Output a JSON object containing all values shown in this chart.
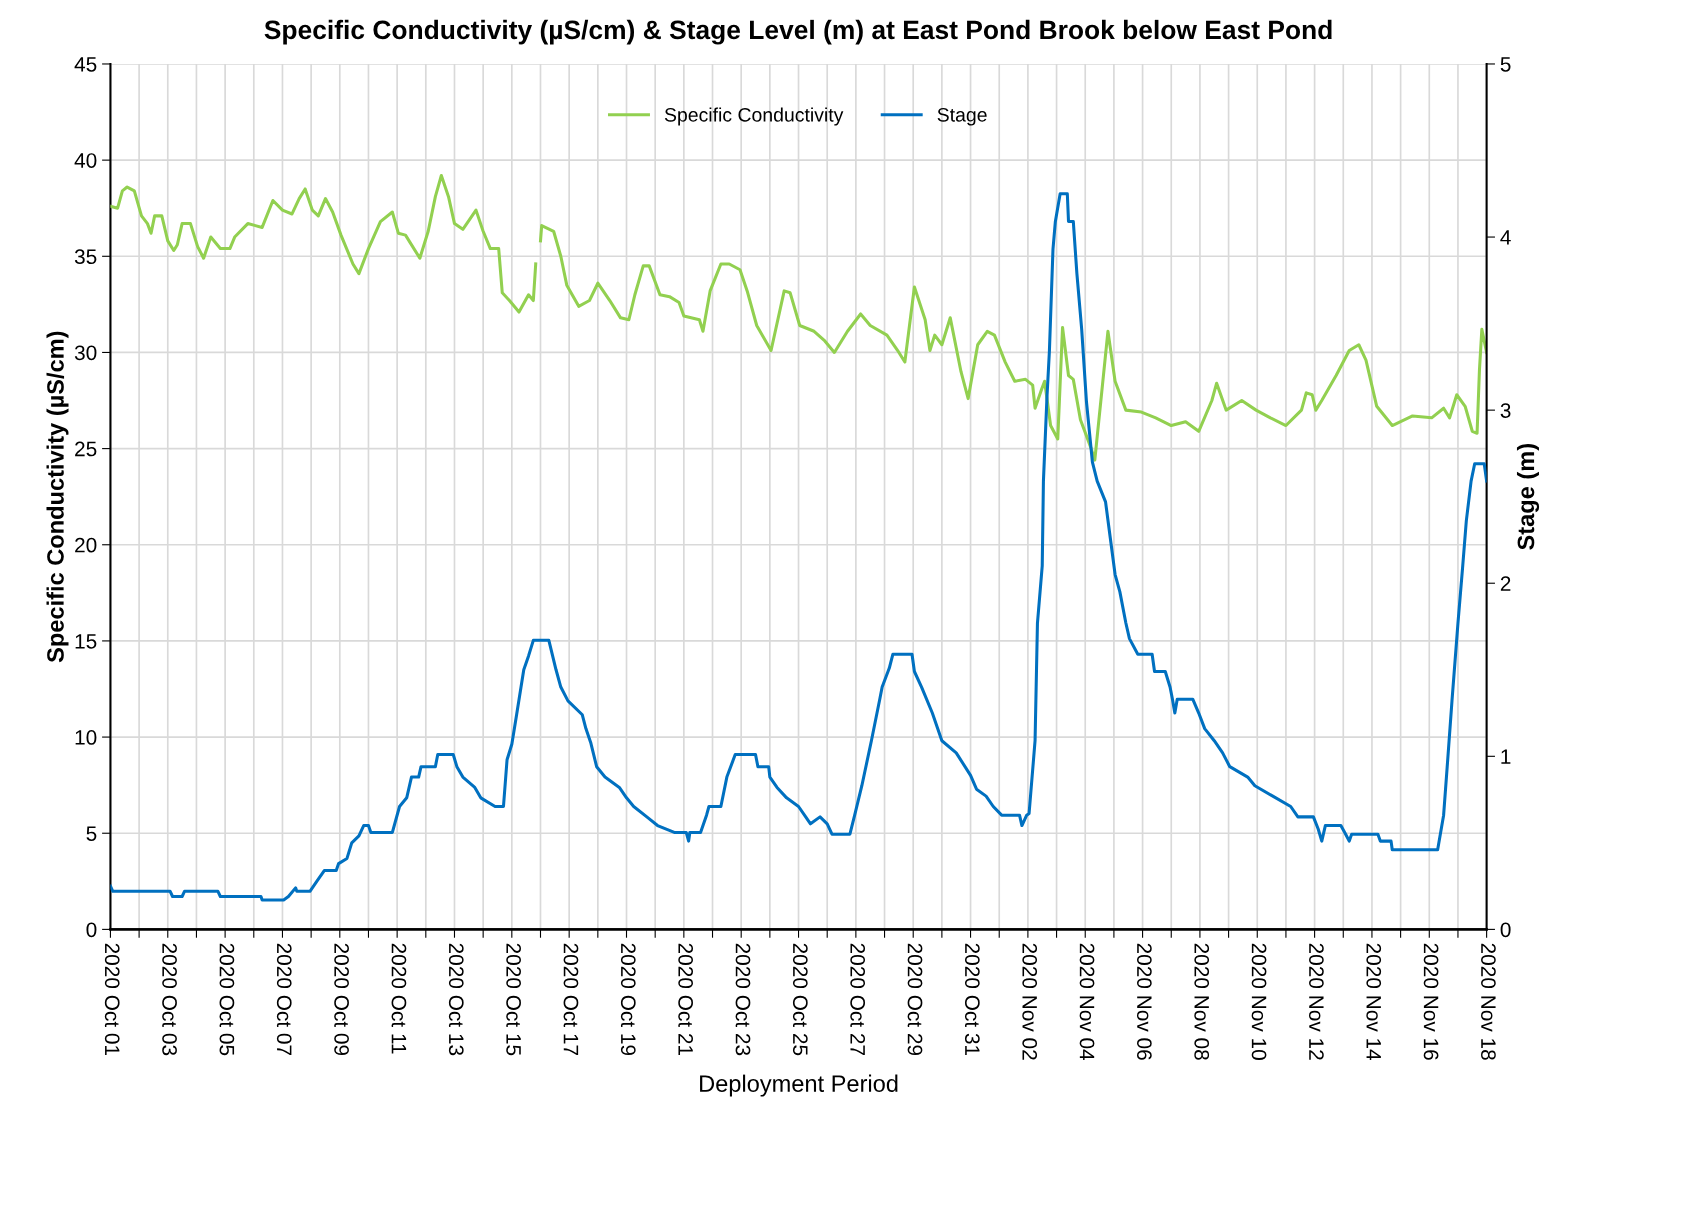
{
  "chart_data": {
    "type": "line",
    "title": "Specific Conductivity (µS/cm) & Stage Level (m) at East Pond Brook below East Pond",
    "xlabel": "Deployment Period",
    "ylabel": "Specific Conductivity (µS/cm)",
    "y2label": "Stage (m)",
    "xlim": [
      "2020-10-01",
      "2020-11-18"
    ],
    "xticks": [
      {
        "value": "2020-10-01",
        "label": "2020 Oct 01"
      },
      {
        "value": "2020-10-02",
        "label": null
      },
      {
        "value": "2020-10-03",
        "label": "2020 Oct 03"
      },
      {
        "value": "2020-10-04",
        "label": null
      },
      {
        "value": "2020-10-05",
        "label": "2020 Oct 05"
      },
      {
        "value": "2020-10-06",
        "label": null
      },
      {
        "value": "2020-10-07",
        "label": "2020 Oct 07"
      },
      {
        "value": "2020-10-08",
        "label": null
      },
      {
        "value": "2020-10-09",
        "label": "2020 Oct 09"
      },
      {
        "value": "2020-10-10",
        "label": null
      },
      {
        "value": "2020-10-11",
        "label": "2020 Oct 11"
      },
      {
        "value": "2020-10-12",
        "label": null
      },
      {
        "value": "2020-10-13",
        "label": "2020 Oct 13"
      },
      {
        "value": "2020-10-14",
        "label": null
      },
      {
        "value": "2020-10-15",
        "label": "2020 Oct 15"
      },
      {
        "value": "2020-10-16",
        "label": null
      },
      {
        "value": "2020-10-17",
        "label": "2020 Oct 17"
      },
      {
        "value": "2020-10-18",
        "label": null
      },
      {
        "value": "2020-10-19",
        "label": "2020 Oct 19"
      },
      {
        "value": "2020-10-20",
        "label": null
      },
      {
        "value": "2020-10-21",
        "label": "2020 Oct 21"
      },
      {
        "value": "2020-10-22",
        "label": null
      },
      {
        "value": "2020-10-23",
        "label": "2020 Oct 23"
      },
      {
        "value": "2020-10-24",
        "label": null
      },
      {
        "value": "2020-10-25",
        "label": "2020 Oct 25"
      },
      {
        "value": "2020-10-26",
        "label": null
      },
      {
        "value": "2020-10-27",
        "label": "2020 Oct 27"
      },
      {
        "value": "2020-10-28",
        "label": null
      },
      {
        "value": "2020-10-29",
        "label": "2020 Oct 29"
      },
      {
        "value": "2020-10-30",
        "label": null
      },
      {
        "value": "2020-10-31",
        "label": "2020 Oct 31"
      },
      {
        "value": "2020-11-01",
        "label": null
      },
      {
        "value": "2020-11-02",
        "label": "2020 Nov 02"
      },
      {
        "value": "2020-11-03",
        "label": null
      },
      {
        "value": "2020-11-04",
        "label": "2020 Nov 04"
      },
      {
        "value": "2020-11-05",
        "label": null
      },
      {
        "value": "2020-11-06",
        "label": "2020 Nov 06"
      },
      {
        "value": "2020-11-07",
        "label": null
      },
      {
        "value": "2020-11-08",
        "label": "2020 Nov 08"
      },
      {
        "value": "2020-11-09",
        "label": null
      },
      {
        "value": "2020-11-10",
        "label": "2020 Nov 10"
      },
      {
        "value": "2020-11-11",
        "label": null
      },
      {
        "value": "2020-11-12",
        "label": "2020 Nov 12"
      },
      {
        "value": "2020-11-13",
        "label": null
      },
      {
        "value": "2020-11-14",
        "label": "2020 Nov 14"
      },
      {
        "value": "2020-11-15",
        "label": null
      },
      {
        "value": "2020-11-16",
        "label": "2020 Nov 16"
      },
      {
        "value": "2020-11-17",
        "label": null
      },
      {
        "value": "2020-11-18",
        "label": "2020 Nov 18"
      }
    ],
    "ylim": [
      0,
      45
    ],
    "yticks": [
      0,
      5,
      10,
      15,
      20,
      25,
      30,
      35,
      40,
      45
    ],
    "y2lim": [
      0,
      5
    ],
    "y2ticks": [
      0,
      1,
      2,
      3,
      4,
      5
    ],
    "grid": true,
    "legend": "top",
    "marker": "none",
    "line_style": "solid",
    "series": [
      {
        "name": "Specific Conductivity",
        "color": "#92d050",
        "axis": "y",
        "x": [
          "2020-10-01T00:00",
          "2020-10-01T06:00",
          "2020-10-01T10:00",
          "2020-10-01T14:00",
          "2020-10-01T20:00",
          "2020-10-02T02:00",
          "2020-10-02T07:00",
          "2020-10-02T10:00",
          "2020-10-02T13:00",
          "2020-10-02T19:00",
          "2020-10-03T00:00",
          "2020-10-03T05:00",
          "2020-10-03T08:00",
          "2020-10-03T12:00",
          "2020-10-03T19:00",
          "2020-10-04T01:00",
          "2020-10-04T06:00",
          "2020-10-04T12:00",
          "2020-10-04T20:00",
          "2020-10-05T04:00",
          "2020-10-05T08:00",
          "2020-10-05T19:00",
          "2020-10-06T07:00",
          "2020-10-06T16:00",
          "2020-10-07T00:00",
          "2020-10-07T08:00",
          "2020-10-07T14:00",
          "2020-10-07T19:00",
          "2020-10-08T01:00",
          "2020-10-08T06:00",
          "2020-10-08T12:00",
          "2020-10-08T18:00",
          "2020-10-09T01:00",
          "2020-10-09T11:00",
          "2020-10-09T16:00",
          "2020-10-10T00:00",
          "2020-10-10T10:00",
          "2020-10-10T20:00",
          "2020-10-11T01:00",
          "2020-10-11T07:00",
          "2020-10-11T19:00",
          "2020-10-12T02:00",
          "2020-10-12T08:00",
          "2020-10-12T13:00",
          "2020-10-12T19:00",
          "2020-10-13T00:00",
          "2020-10-13T07:00",
          "2020-10-13T18:00",
          "2020-10-14T00:00",
          "2020-10-14T06:00",
          "2020-10-14T13:00",
          "2020-10-14T16:00",
          "2020-10-14T22:00",
          "2020-10-15T06:00",
          "2020-10-15T14:00",
          "2020-10-15T18:00",
          "2020-10-15T20:00",
          "2020-10-15T22:00",
          "2020-10-16T00:00",
          "2020-10-16T01:00",
          "2020-10-16T11:00",
          "2020-10-16T17:00",
          "2020-10-16T22:00",
          "2020-10-17T08:00",
          "2020-10-17T17:00",
          "2020-10-18T00:00",
          "2020-10-18T10:00",
          "2020-10-18T19:00",
          "2020-10-19T02:00",
          "2020-10-19T07:00",
          "2020-10-19T14:00",
          "2020-10-19T19:00",
          "2020-10-20T04:00",
          "2020-10-20T12:00",
          "2020-10-20T20:00",
          "2020-10-21T00:00",
          "2020-10-21T13:00",
          "2020-10-21T16:00",
          "2020-10-21T22:00",
          "2020-10-22T07:00",
          "2020-10-22T14:00",
          "2020-10-22T23:00",
          "2020-10-23T05:00",
          "2020-10-23T13:00",
          "2020-10-24T01:00",
          "2020-10-24T12:00",
          "2020-10-24T17:00",
          "2020-10-25T01:00",
          "2020-10-25T13:00",
          "2020-10-25T22:00",
          "2020-10-26T06:00",
          "2020-10-26T17:00",
          "2020-10-27T04:00",
          "2020-10-27T12:00",
          "2020-10-28T02:00",
          "2020-10-28T11:00",
          "2020-10-28T17:00",
          "2020-10-29T01:00",
          "2020-10-29T10:00",
          "2020-10-29T14:00",
          "2020-10-29T18:00",
          "2020-10-30T00:00",
          "2020-10-30T07:00",
          "2020-10-30T16:00",
          "2020-10-30T22:00",
          "2020-10-31T06:00",
          "2020-10-31T14:00",
          "2020-10-31T20:00",
          "2020-11-01T05:00",
          "2020-11-01T13:00",
          "2020-11-01T22:00",
          "2020-11-02T04:00",
          "2020-11-02T06:00",
          "2020-11-02T11:00",
          "2020-11-02T14:00",
          "2020-11-02T19:00",
          "2020-11-03T01:00",
          "2020-11-03T05:00",
          "2020-11-03T10:00",
          "2020-11-03T14:00",
          "2020-11-03T20:00",
          "2020-11-04T05:00",
          "2020-11-04T08:00",
          "2020-11-04T19:00",
          "2020-11-05T01:00",
          "2020-11-05T10:00",
          "2020-11-05T23:00",
          "2020-11-06T11:00",
          "2020-11-07T00:00",
          "2020-11-07T12:00",
          "2020-11-07T23:00",
          "2020-11-08T10:00",
          "2020-11-08T14:00",
          "2020-11-08T22:00",
          "2020-11-09T11:00",
          "2020-11-09T23:00",
          "2020-11-10T11:00",
          "2020-11-11T00:00",
          "2020-11-11T13:00",
          "2020-11-11T17:00",
          "2020-11-11T22:00",
          "2020-11-12T01:00",
          "2020-11-12T06:00",
          "2020-11-12T18:00",
          "2020-11-13T05:00",
          "2020-11-13T13:00",
          "2020-11-13T19:00",
          "2020-11-14T04:00",
          "2020-11-14T17:00",
          "2020-11-15T10:00",
          "2020-11-16T02:00",
          "2020-11-16T12:00",
          "2020-11-16T17:00",
          "2020-11-16T23:00",
          "2020-11-17T06:00",
          "2020-11-17T12:00",
          "2020-11-17T16:00",
          "2020-11-17T18:00",
          "2020-11-17T20:00",
          "2020-11-18T00:00"
        ],
        "values": [
          37.6,
          37.5,
          38.4,
          38.6,
          38.4,
          37.1,
          36.7,
          36.2,
          37.1,
          37.1,
          35.8,
          35.3,
          35.6,
          36.7,
          36.7,
          35.5,
          34.9,
          36.0,
          35.4,
          35.4,
          36.0,
          36.7,
          36.5,
          37.9,
          37.4,
          37.2,
          38.0,
          38.5,
          37.4,
          37.1,
          38.0,
          37.3,
          36.1,
          34.6,
          34.1,
          35.4,
          36.8,
          37.3,
          36.2,
          36.1,
          34.9,
          36.3,
          38.1,
          39.2,
          38.1,
          36.7,
          36.4,
          37.4,
          36.3,
          35.4,
          35.4,
          33.1,
          32.7,
          32.1,
          33.0,
          32.7,
          34.6,
          null,
          35.8,
          36.6,
          36.3,
          35.0,
          33.5,
          32.4,
          32.7,
          33.6,
          32.7,
          31.8,
          31.7,
          33.0,
          34.5,
          34.5,
          33.0,
          32.9,
          32.6,
          31.9,
          31.7,
          31.1,
          33.2,
          34.6,
          34.6,
          34.3,
          33.2,
          31.4,
          30.1,
          33.2,
          33.1,
          31.4,
          31.1,
          30.6,
          30.0,
          31.1,
          32.0,
          31.4,
          30.9,
          30.1,
          29.5,
          33.4,
          31.7,
          30.1,
          30.9,
          30.4,
          31.8,
          29.0,
          27.6,
          30.4,
          31.1,
          30.9,
          29.5,
          28.5,
          28.6,
          28.3,
          27.1,
          28.0,
          28.5,
          26.2,
          25.5,
          31.3,
          28.8,
          28.6,
          26.5,
          25.0,
          24.4,
          31.1,
          28.5,
          27.0,
          26.9,
          26.6,
          26.2,
          26.4,
          25.9,
          27.5,
          28.4,
          27.0,
          27.5,
          27.0,
          26.6,
          26.2,
          27.0,
          27.9,
          27.8,
          27.0,
          27.5,
          28.8,
          30.1,
          30.4,
          29.6,
          27.2,
          26.2,
          26.7,
          26.6,
          27.1,
          26.6,
          27.8,
          27.2,
          25.9,
          25.8,
          29.1,
          31.2,
          30.0
        ]
      },
      {
        "name": "Stage",
        "color": "#0070c0",
        "axis": "y2",
        "x": [
          "2020-10-01T00:00",
          "2020-10-01T02:00",
          "2020-10-03T02:00",
          "2020-10-03T04:00",
          "2020-10-03T12:00",
          "2020-10-03T14:00",
          "2020-10-04T18:00",
          "2020-10-04T20:00",
          "2020-10-06T06:00",
          "2020-10-06T07:00",
          "2020-10-07T01:00",
          "2020-10-07T05:00",
          "2020-10-07T11:00",
          "2020-10-07T12:00",
          "2020-10-07T23:00",
          "2020-10-08T05:00",
          "2020-10-08T11:00",
          "2020-10-08T21:00",
          "2020-10-08T23:00",
          "2020-10-09T06:00",
          "2020-10-09T10:00",
          "2020-10-09T16:00",
          "2020-10-09T20:00",
          "2020-10-10T00:00",
          "2020-10-10T02:00",
          "2020-10-10T20:00",
          "2020-10-11T02:00",
          "2020-10-11T08:00",
          "2020-10-11T12:00",
          "2020-10-11T18:00",
          "2020-10-11T20:00",
          "2020-10-12T08:00",
          "2020-10-12T10:00",
          "2020-10-12T23:00",
          "2020-10-13T02:00",
          "2020-10-13T07:00",
          "2020-10-13T17:00",
          "2020-10-13T22:00",
          "2020-10-14T10:00",
          "2020-10-14T17:00",
          "2020-10-14T20:00",
          "2020-10-15T00:00",
          "2020-10-15T04:00",
          "2020-10-15T10:00",
          "2020-10-15T14:00",
          "2020-10-15T18:00",
          "2020-10-16T07:00",
          "2020-10-16T13:00",
          "2020-10-16T17:00",
          "2020-10-16T23:00",
          "2020-10-17T11:00",
          "2020-10-17T14:00",
          "2020-10-17T18:00",
          "2020-10-17T23:00",
          "2020-10-18T06:00",
          "2020-10-18T18:00",
          "2020-10-19T00:00",
          "2020-10-19T06:00",
          "2020-10-19T17:00",
          "2020-10-20T02:00",
          "2020-10-20T16:00",
          "2020-10-21T02:00",
          "2020-10-21T04:00",
          "2020-10-21T05:00",
          "2020-10-21T14:00",
          "2020-10-21T19:00",
          "2020-10-21T21:00",
          "2020-10-22T07:00",
          "2020-10-22T12:00",
          "2020-10-22T19:00",
          "2020-10-23T12:00",
          "2020-10-23T14:00",
          "2020-10-23T23:00",
          "2020-10-24T00:00",
          "2020-10-24T06:00",
          "2020-10-24T14:00",
          "2020-10-25T00:00",
          "2020-10-25T06:00",
          "2020-10-25T10:00",
          "2020-10-25T18:00",
          "2020-10-26T00:00",
          "2020-10-26T04:00",
          "2020-10-26T19:00",
          "2020-10-26T23:00",
          "2020-10-27T05:00",
          "2020-10-27T13:00",
          "2020-10-27T20:00",
          "2020-10-27T22:00",
          "2020-10-28T04:00",
          "2020-10-28T07:00",
          "2020-10-28T23:00",
          "2020-10-29T01:00",
          "2020-10-29T07:00",
          "2020-10-29T16:00",
          "2020-10-30T00:00",
          "2020-10-30T12:00",
          "2020-10-31T00:00",
          "2020-10-31T05:00",
          "2020-10-31T13:00",
          "2020-10-31T19:00",
          "2020-11-01T02:00",
          "2020-11-01T17:00",
          "2020-11-01T19:00",
          "2020-11-01T23:00",
          "2020-11-02T01:00",
          "2020-11-02T06:00",
          "2020-11-02T08:00",
          "2020-11-02T12:00",
          "2020-11-02T13:00",
          "2020-11-02T16:00",
          "2020-11-02T18:00",
          "2020-11-02T21:00",
          "2020-11-02T23:00",
          "2020-11-03T03:00",
          "2020-11-03T09:00",
          "2020-11-03T10:00",
          "2020-11-03T14:00",
          "2020-11-03T17:00",
          "2020-11-03T21:00",
          "2020-11-04T01:00",
          "2020-11-04T06:00",
          "2020-11-04T10:00",
          "2020-11-04T17:00",
          "2020-11-04T21:00",
          "2020-11-05T01:00",
          "2020-11-05T05:00",
          "2020-11-05T10:00",
          "2020-11-05T13:00",
          "2020-11-05T20:00",
          "2020-11-06T08:00",
          "2020-11-06T10:00",
          "2020-11-06T19:00",
          "2020-11-06T23:00",
          "2020-11-07T01:00",
          "2020-11-07T03:00",
          "2020-11-07T05:00",
          "2020-11-07T18:00",
          "2020-11-07T23:00",
          "2020-11-08T04:00",
          "2020-11-08T12:00",
          "2020-11-08T19:00",
          "2020-11-09T01:00",
          "2020-11-09T16:00",
          "2020-11-09T22:00",
          "2020-11-10T13:00",
          "2020-11-11T04:00",
          "2020-11-11T10:00",
          "2020-11-11T23:00",
          "2020-11-12T03:00",
          "2020-11-12T06:00",
          "2020-11-12T09:00",
          "2020-11-12T22:00",
          "2020-11-13T02:00",
          "2020-11-13T05:00",
          "2020-11-13T07:00",
          "2020-11-14T05:00",
          "2020-11-14T07:00",
          "2020-11-14T16:00",
          "2020-11-14T17:00",
          "2020-11-16T07:00",
          "2020-11-16T12:00",
          "2020-11-16T15:00",
          "2020-11-16T19:00",
          "2020-11-17T00:00",
          "2020-11-17T04:00",
          "2020-11-17T07:00",
          "2020-11-17T11:00",
          "2020-11-17T14:00",
          "2020-11-17T22:00",
          "2020-11-18T00:00"
        ],
        "values": [
          0.25,
          0.22,
          0.22,
          0.19,
          0.19,
          0.22,
          0.22,
          0.19,
          0.19,
          0.17,
          0.17,
          0.19,
          0.24,
          0.22,
          0.22,
          0.28,
          0.34,
          0.34,
          0.38,
          0.41,
          0.5,
          0.54,
          0.6,
          0.6,
          0.56,
          0.56,
          0.71,
          0.76,
          0.88,
          0.88,
          0.94,
          0.94,
          1.01,
          1.01,
          0.94,
          0.88,
          0.82,
          0.76,
          0.71,
          0.71,
          0.98,
          1.07,
          1.24,
          1.5,
          1.58,
          1.67,
          1.67,
          1.5,
          1.4,
          1.32,
          1.24,
          1.16,
          1.08,
          0.94,
          0.88,
          0.82,
          0.76,
          0.71,
          0.65,
          0.6,
          0.56,
          0.56,
          0.51,
          0.56,
          0.56,
          0.66,
          0.71,
          0.71,
          0.88,
          1.01,
          1.01,
          0.94,
          0.94,
          0.88,
          0.82,
          0.76,
          0.71,
          0.65,
          0.61,
          0.65,
          0.61,
          0.55,
          0.55,
          0.66,
          0.83,
          1.09,
          1.33,
          1.4,
          1.51,
          1.59,
          1.59,
          1.49,
          1.4,
          1.25,
          1.09,
          1.02,
          0.89,
          0.81,
          0.77,
          0.71,
          0.66,
          0.66,
          0.6,
          0.66,
          0.67,
          1.09,
          1.77,
          2.1,
          2.59,
          3.08,
          3.34,
          3.93,
          4.09,
          4.25,
          4.25,
          4.09,
          4.09,
          3.79,
          3.47,
          3.05,
          2.7,
          2.59,
          2.47,
          2.26,
          2.05,
          1.95,
          1.77,
          1.68,
          1.59,
          1.59,
          1.49,
          1.49,
          1.4,
          1.33,
          1.25,
          1.33,
          1.33,
          1.25,
          1.16,
          1.09,
          1.02,
          0.94,
          0.88,
          0.83,
          0.77,
          0.71,
          0.65,
          0.65,
          0.58,
          0.51,
          0.6,
          0.6,
          0.55,
          0.51,
          0.55,
          0.55,
          0.51,
          0.51,
          0.46,
          0.46,
          0.66,
          0.94,
          1.32,
          1.77,
          2.1,
          2.36,
          2.59,
          2.69,
          2.69,
          2.59
        ]
      }
    ]
  }
}
